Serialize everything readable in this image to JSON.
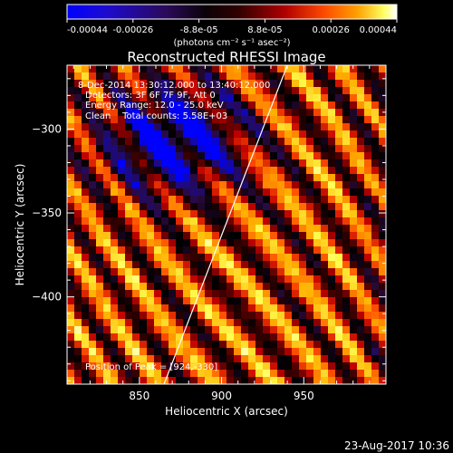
{
  "chart_data": {
    "type": "heatmap",
    "title": "Reconstructed RHESSI Image",
    "xlabel": "Heliocentric X (arcsec)",
    "ylabel": "Heliocentric Y (arcsec)",
    "xlim": [
      806,
      1000
    ],
    "ylim": [
      -452,
      -262
    ],
    "x_ticks": [
      850,
      900,
      950
    ],
    "y_ticks": [
      -300,
      -350,
      -400
    ],
    "annotations": [
      "8-Dec-2014 13:30:12.000 to 13:40:12.000",
      "Detectors: 3F 6F 7F 9F, Att 0",
      "Energy Range: 12.0 - 25.0 keV",
      "Clean    Total counts: 5.58E+03",
      "Position of Peak = [924,-330]"
    ],
    "peak_position": [
      924,
      -330
    ],
    "limb_line": {
      "x": [
        865,
        940
      ],
      "y": [
        -452,
        -262
      ]
    },
    "colorbar": {
      "min": -0.00044,
      "max": 0.00044,
      "tick_labels": [
        "-0.00044",
        "-0.00026",
        "-8.8e-05",
        "8.8e-05",
        "0.00026",
        "0.00044"
      ],
      "unit_label": "(photons cm⁻² s⁻¹ asec⁻²)",
      "colormap": [
        "#0000ff",
        "#1a0a8a",
        "#2a0a3a",
        "#000000",
        "#550000",
        "#c00000",
        "#ff5000",
        "#ffb000",
        "#ffff50",
        "#ffffff"
      ]
    }
  },
  "timestamp": "23-Aug-2017 10:36",
  "colors": {
    "background": "#000000",
    "foreground": "#ffffff",
    "limb": "#ffffff"
  }
}
